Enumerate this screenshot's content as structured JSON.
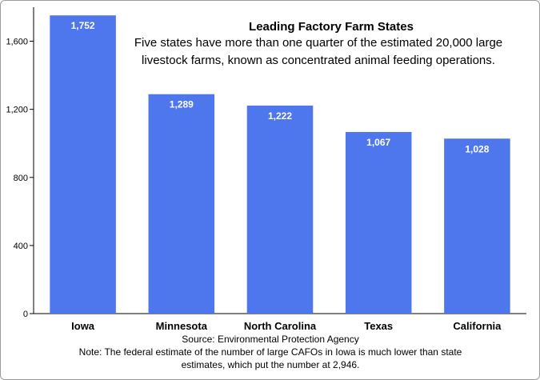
{
  "chart_data": {
    "type": "bar",
    "title": "Leading Factory Farm States",
    "subtitle_lines": [
      "Five states have more than one quarter of the estimated 20,000 large",
      "livestock farms, known as concentrated animal feeding operations."
    ],
    "categories": [
      "Iowa",
      "Minnesota",
      "North Carolina",
      "Texas",
      "California"
    ],
    "values": [
      1752,
      1289,
      1222,
      1067,
      1028
    ],
    "value_labels": [
      "1,752",
      "1,289",
      "1,222",
      "1,067",
      "1,028"
    ],
    "ylim": [
      0,
      1800
    ],
    "yticks": [
      0,
      400,
      800,
      1200,
      1600
    ],
    "ytick_labels": [
      "0",
      "400",
      "800",
      "1,200",
      "1,600"
    ],
    "xlabel": "",
    "ylabel": "",
    "bar_color": "#4f77ed",
    "grid": false,
    "legend": false
  },
  "footer": {
    "source": "Source: Environmental Protection Agency",
    "note_lines": [
      "Note: The federal estimate of the number of large CAFOs in Iowa is much lower than state",
      "estimates, which put the number at 2,946."
    ]
  }
}
